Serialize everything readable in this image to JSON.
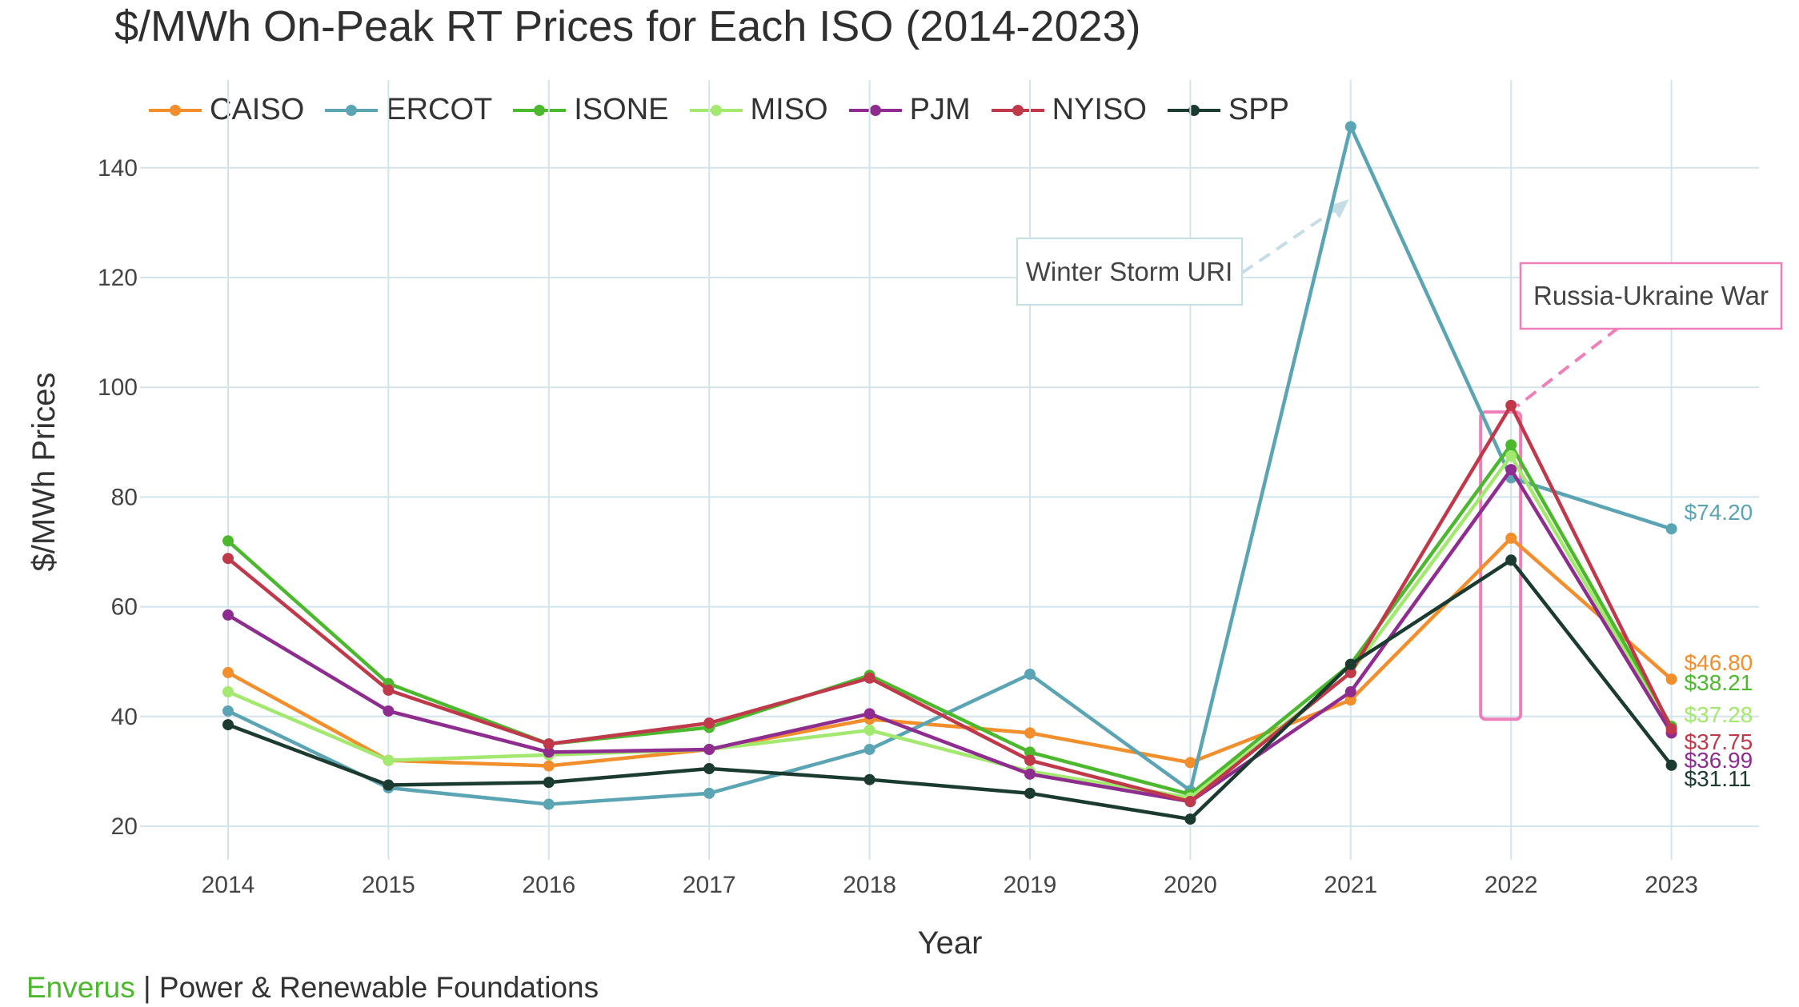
{
  "title": "$/MWh On-Peak RT Prices for Each ISO (2014-2023)",
  "footer": {
    "brand": "Enverus",
    "separator": " | ",
    "text": "Power & Renewable Foundations"
  },
  "chart_data": {
    "type": "line",
    "title": "$/MWh On-Peak RT Prices for Each ISO (2014-2023)",
    "xlabel": "Year",
    "ylabel": "$/MWh Prices",
    "x": [
      2014,
      2015,
      2016,
      2017,
      2018,
      2019,
      2020,
      2021,
      2022,
      2023
    ],
    "ylim": [
      15,
      150
    ],
    "yticks": [
      20,
      40,
      60,
      80,
      100,
      120,
      140
    ],
    "grid": true,
    "legend_position": "top",
    "series": [
      {
        "name": "CAISO",
        "color": "#f28e2b",
        "values": [
          48,
          32,
          31,
          34,
          39.5,
          37,
          31.6,
          43,
          72.5,
          46.8
        ],
        "end_label": "$46.80"
      },
      {
        "name": "ERCOT",
        "color": "#5ba4b4",
        "values": [
          41,
          27,
          24,
          26,
          34,
          47.7,
          26.5,
          147.5,
          83.5,
          74.2
        ],
        "end_label": "$74.20"
      },
      {
        "name": "ISONE",
        "color": "#4cb82e",
        "values": [
          72,
          46,
          35,
          38,
          47.5,
          33.5,
          25.8,
          49.5,
          89.5,
          38.21
        ],
        "end_label": "$38.21"
      },
      {
        "name": "MISO",
        "color": "#a3e86f",
        "values": [
          44.5,
          32,
          33,
          34,
          37.5,
          30,
          25.2,
          48,
          87.5,
          37.28
        ],
        "end_label": "$37.28"
      },
      {
        "name": "PJM",
        "color": "#8e2c8f",
        "values": [
          58.5,
          41,
          33.5,
          34,
          40.5,
          29.5,
          24.5,
          44.5,
          85,
          36.99
        ],
        "end_label": "$36.99"
      },
      {
        "name": "NYISO",
        "color": "#c0394b",
        "values": [
          68.8,
          44.8,
          35,
          38.8,
          47,
          32,
          24.5,
          48,
          96.7,
          37.75
        ],
        "end_label": "$37.75"
      },
      {
        "name": "SPP",
        "color": "#1b3a30",
        "values": [
          38.5,
          27.5,
          28,
          30.5,
          28.5,
          26,
          21.3,
          49.5,
          68.5,
          31.11
        ],
        "end_label": "$31.11"
      }
    ],
    "annotations": [
      {
        "text": "Winter Storm URI",
        "points_to_x": 2021,
        "points_to_y": 134,
        "color": "#c5dde4"
      },
      {
        "text": "Russia-Ukraine War",
        "points_to_x": 2022,
        "points_to_y": 96,
        "color": "#ee7fb9"
      }
    ],
    "highlight_box": {
      "x": 2022,
      "y_range": [
        39.5,
        95.5
      ],
      "color": "#ee7fb9"
    }
  }
}
